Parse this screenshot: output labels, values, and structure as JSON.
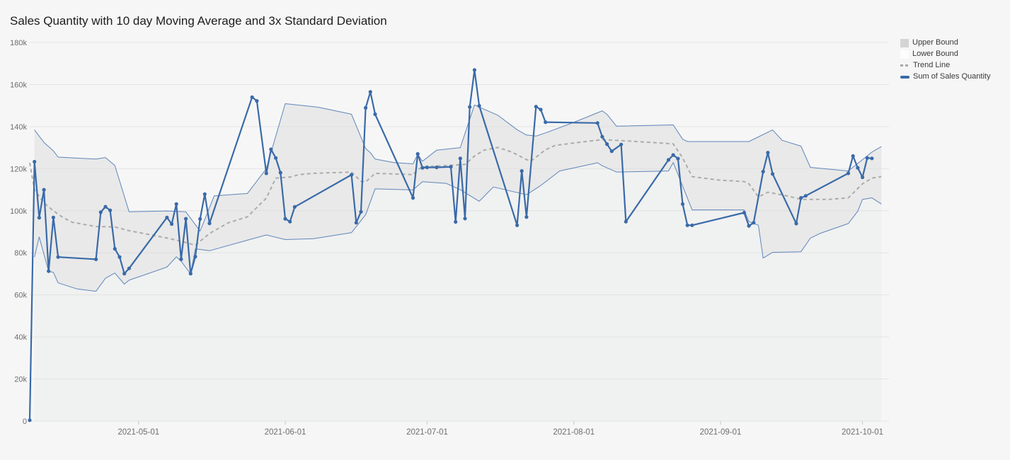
{
  "title": "Sales Quantity with 10 day Moving Average and 3x Standard Deviation",
  "colors": {
    "page_bg": "#f6f6f6",
    "band_fill": "#e9e9e9",
    "below_band_fill": "#f0f1f1",
    "grid": "#dedede",
    "tick_mark": "#c8c8c8",
    "axis_label": "#6e6e6e",
    "bound_line": "#5f86ba",
    "trend_line": "#acacac",
    "sales_line": "#3a6aa8",
    "title_text": "#1d1d1d",
    "legend_text": "#3a3a3a",
    "legend_upper_swatch": "#d4d4d4",
    "legend_lower_swatch": "#fdfdfd"
  },
  "legend": {
    "items": [
      {
        "label": "Upper Bound",
        "swatch": "filled-square-gray"
      },
      {
        "label": "Lower Bound",
        "swatch": "filled-square-white"
      },
      {
        "label": "Trend Line",
        "swatch": "dashed-line"
      },
      {
        "label": "Sum of Sales Quantity",
        "swatch": "solid-line"
      }
    ]
  },
  "chart_data": {
    "type": "line",
    "title": "Sales Quantity with 10 day Moving Average and 3x Standard Deviation",
    "grid": true,
    "legend_position": "top-right",
    "x_range": [
      "2021-04-08",
      "2021-10-06"
    ],
    "x_ticks": [
      "2021-05-01",
      "2021-06-01",
      "2021-07-01",
      "2021-08-01",
      "2021-09-01",
      "2021-10-01"
    ],
    "y_axis": {
      "min": 0,
      "max": 180000,
      "step": 20000,
      "tick_labels": [
        "0",
        "20k",
        "40k",
        "60k",
        "80k",
        "100k",
        "120k",
        "140k",
        "160k",
        "180k"
      ]
    },
    "series": [
      {
        "name": "Upper Bound",
        "role": "band-upper",
        "points": [
          [
            "2021-04-09",
            138400
          ],
          [
            "2021-04-11",
            132500
          ],
          [
            "2021-04-13",
            128500
          ],
          [
            "2021-04-14",
            125500
          ],
          [
            "2021-04-22",
            124600
          ],
          [
            "2021-04-24",
            125300
          ],
          [
            "2021-04-26",
            121500
          ],
          [
            "2021-04-29",
            99500
          ],
          [
            "2021-05-07",
            99900
          ],
          [
            "2021-05-11",
            99500
          ],
          [
            "2021-05-14",
            90300
          ],
          [
            "2021-05-17",
            107100
          ],
          [
            "2021-05-24",
            108200
          ],
          [
            "2021-05-28",
            120000
          ],
          [
            "2021-06-01",
            150900
          ],
          [
            "2021-06-08",
            149200
          ],
          [
            "2021-06-15",
            145900
          ],
          [
            "2021-06-18",
            129600
          ],
          [
            "2021-06-19",
            127600
          ],
          [
            "2021-06-20",
            124600
          ],
          [
            "2021-06-24",
            122900
          ],
          [
            "2021-06-28",
            122300
          ],
          [
            "2021-06-29",
            126800
          ],
          [
            "2021-06-30",
            123500
          ],
          [
            "2021-07-03",
            128800
          ],
          [
            "2021-07-08",
            130000
          ],
          [
            "2021-07-11",
            150300
          ],
          [
            "2021-07-16",
            145300
          ],
          [
            "2021-07-20",
            138500
          ],
          [
            "2021-07-22",
            136000
          ],
          [
            "2021-07-24",
            135500
          ],
          [
            "2021-07-26",
            137000
          ],
          [
            "2021-08-01",
            142000
          ],
          [
            "2021-08-07",
            147500
          ],
          [
            "2021-08-08",
            145800
          ],
          [
            "2021-08-10",
            140200
          ],
          [
            "2021-08-22",
            140800
          ],
          [
            "2021-08-24",
            134000
          ],
          [
            "2021-08-25",
            132900
          ],
          [
            "2021-09-07",
            132900
          ],
          [
            "2021-09-12",
            138400
          ],
          [
            "2021-09-14",
            133500
          ],
          [
            "2021-09-18",
            130700
          ],
          [
            "2021-09-20",
            120600
          ],
          [
            "2021-09-28",
            118900
          ],
          [
            "2021-10-03",
            127900
          ],
          [
            "2021-10-05",
            130500
          ]
        ]
      },
      {
        "name": "Lower Bound",
        "role": "band-lower",
        "points": [
          [
            "2021-04-09",
            78000
          ],
          [
            "2021-04-10",
            87500
          ],
          [
            "2021-04-12",
            71200
          ],
          [
            "2021-04-13",
            70700
          ],
          [
            "2021-04-14",
            65700
          ],
          [
            "2021-04-18",
            62800
          ],
          [
            "2021-04-22",
            61700
          ],
          [
            "2021-04-24",
            67900
          ],
          [
            "2021-04-26",
            70400
          ],
          [
            "2021-04-28",
            65100
          ],
          [
            "2021-04-29",
            67000
          ],
          [
            "2021-05-07",
            73200
          ],
          [
            "2021-05-09",
            78100
          ],
          [
            "2021-05-10",
            76000
          ],
          [
            "2021-05-12",
            69900
          ],
          [
            "2021-05-13",
            81900
          ],
          [
            "2021-05-16",
            81000
          ],
          [
            "2021-05-24",
            86000
          ],
          [
            "2021-05-28",
            88500
          ],
          [
            "2021-06-01",
            86300
          ],
          [
            "2021-06-07",
            86700
          ],
          [
            "2021-06-15",
            89600
          ],
          [
            "2021-06-18",
            98100
          ],
          [
            "2021-06-20",
            110400
          ],
          [
            "2021-06-28",
            109900
          ],
          [
            "2021-06-30",
            113800
          ],
          [
            "2021-07-05",
            113000
          ],
          [
            "2021-07-08",
            110000
          ],
          [
            "2021-07-12",
            104500
          ],
          [
            "2021-07-15",
            111300
          ],
          [
            "2021-07-22",
            107600
          ],
          [
            "2021-07-25",
            112000
          ],
          [
            "2021-07-29",
            118900
          ],
          [
            "2021-08-06",
            122800
          ],
          [
            "2021-08-07",
            121400
          ],
          [
            "2021-08-10",
            118400
          ],
          [
            "2021-08-21",
            118900
          ],
          [
            "2021-08-22",
            122900
          ],
          [
            "2021-08-26",
            100400
          ],
          [
            "2021-09-06",
            100400
          ],
          [
            "2021-09-07",
            94800
          ],
          [
            "2021-09-09",
            93100
          ],
          [
            "2021-09-10",
            77500
          ],
          [
            "2021-09-12",
            80200
          ],
          [
            "2021-09-18",
            80500
          ],
          [
            "2021-09-20",
            87000
          ],
          [
            "2021-09-22",
            89200
          ],
          [
            "2021-09-28",
            93900
          ],
          [
            "2021-09-30",
            99800
          ],
          [
            "2021-10-01",
            105400
          ],
          [
            "2021-10-03",
            106100
          ],
          [
            "2021-10-05",
            103200
          ]
        ]
      },
      {
        "name": "Trend Line",
        "role": "trend",
        "points": [
          [
            "2021-04-08",
            122800
          ],
          [
            "2021-04-09",
            110000
          ],
          [
            "2021-04-11",
            103700
          ],
          [
            "2021-04-13",
            100000
          ],
          [
            "2021-04-15",
            96800
          ],
          [
            "2021-04-17",
            94500
          ],
          [
            "2021-04-22",
            92500
          ],
          [
            "2021-04-26",
            92300
          ],
          [
            "2021-04-29",
            90500
          ],
          [
            "2021-05-03",
            88800
          ],
          [
            "2021-05-07",
            87000
          ],
          [
            "2021-05-10",
            85500
          ],
          [
            "2021-05-13",
            83600
          ],
          [
            "2021-05-16",
            89200
          ],
          [
            "2021-05-20",
            94300
          ],
          [
            "2021-05-24",
            97100
          ],
          [
            "2021-05-28",
            106000
          ],
          [
            "2021-05-30",
            115500
          ],
          [
            "2021-06-02",
            116000
          ],
          [
            "2021-06-04",
            117200
          ],
          [
            "2021-06-07",
            117800
          ],
          [
            "2021-06-15",
            118400
          ],
          [
            "2021-06-17",
            114000
          ],
          [
            "2021-06-18",
            113700
          ],
          [
            "2021-06-20",
            117800
          ],
          [
            "2021-06-28",
            117200
          ],
          [
            "2021-06-29",
            119500
          ],
          [
            "2021-06-30",
            120900
          ],
          [
            "2021-07-05",
            121500
          ],
          [
            "2021-07-09",
            122000
          ],
          [
            "2021-07-11",
            126000
          ],
          [
            "2021-07-13",
            128800
          ],
          [
            "2021-07-16",
            130100
          ],
          [
            "2021-07-19",
            127800
          ],
          [
            "2021-07-22",
            124300
          ],
          [
            "2021-07-23",
            123700
          ],
          [
            "2021-07-26",
            129000
          ],
          [
            "2021-07-28",
            131000
          ],
          [
            "2021-08-02",
            132500
          ],
          [
            "2021-08-07",
            133800
          ],
          [
            "2021-08-12",
            133200
          ],
          [
            "2021-08-18",
            132400
          ],
          [
            "2021-08-22",
            131800
          ],
          [
            "2021-08-24",
            125100
          ],
          [
            "2021-08-26",
            116200
          ],
          [
            "2021-09-01",
            114500
          ],
          [
            "2021-09-06",
            113900
          ],
          [
            "2021-09-07",
            112800
          ],
          [
            "2021-09-09",
            106600
          ],
          [
            "2021-09-11",
            108800
          ],
          [
            "2021-09-15",
            107100
          ],
          [
            "2021-09-18",
            105400
          ],
          [
            "2021-09-24",
            105400
          ],
          [
            "2021-09-28",
            106100
          ],
          [
            "2021-10-01",
            112800
          ],
          [
            "2021-10-03",
            115500
          ],
          [
            "2021-10-05",
            116200
          ]
        ]
      },
      {
        "name": "Sum of Sales Quantity",
        "role": "main",
        "points": [
          [
            "2021-04-08",
            400
          ],
          [
            "2021-04-09",
            123300
          ],
          [
            "2021-04-10",
            96700
          ],
          [
            "2021-04-11",
            110000
          ],
          [
            "2021-04-12",
            71300
          ],
          [
            "2021-04-13",
            96800
          ],
          [
            "2021-04-14",
            78000
          ],
          [
            "2021-04-22",
            76900
          ],
          [
            "2021-04-23",
            99300
          ],
          [
            "2021-04-24",
            101900
          ],
          [
            "2021-04-25",
            100200
          ],
          [
            "2021-04-26",
            81900
          ],
          [
            "2021-04-27",
            78000
          ],
          [
            "2021-04-28",
            70100
          ],
          [
            "2021-04-29",
            72600
          ],
          [
            "2021-05-07",
            96800
          ],
          [
            "2021-05-08",
            93700
          ],
          [
            "2021-05-09",
            103200
          ],
          [
            "2021-05-10",
            76900
          ],
          [
            "2021-05-11",
            96200
          ],
          [
            "2021-05-12",
            70100
          ],
          [
            "2021-05-13",
            78200
          ],
          [
            "2021-05-14",
            96100
          ],
          [
            "2021-05-15",
            107900
          ],
          [
            "2021-05-16",
            94000
          ],
          [
            "2021-05-25",
            154000
          ],
          [
            "2021-05-26",
            152200
          ],
          [
            "2021-05-28",
            117800
          ],
          [
            "2021-05-29",
            129200
          ],
          [
            "2021-05-30",
            125100
          ],
          [
            "2021-05-31",
            118100
          ],
          [
            "2021-06-01",
            96200
          ],
          [
            "2021-06-02",
            94800
          ],
          [
            "2021-06-03",
            101800
          ],
          [
            "2021-06-15",
            117100
          ],
          [
            "2021-06-16",
            94300
          ],
          [
            "2021-06-17",
            99500
          ],
          [
            "2021-06-18",
            148900
          ],
          [
            "2021-06-19",
            156500
          ],
          [
            "2021-06-20",
            145900
          ],
          [
            "2021-06-28",
            106100
          ],
          [
            "2021-06-29",
            127000
          ],
          [
            "2021-06-30",
            120400
          ],
          [
            "2021-07-01",
            120600
          ],
          [
            "2021-07-03",
            120600
          ],
          [
            "2021-07-06",
            120900
          ],
          [
            "2021-07-07",
            94700
          ],
          [
            "2021-07-08",
            124900
          ],
          [
            "2021-07-09",
            96300
          ],
          [
            "2021-07-10",
            149300
          ],
          [
            "2021-07-11",
            166900
          ],
          [
            "2021-07-12",
            149900
          ],
          [
            "2021-07-20",
            93100
          ],
          [
            "2021-07-21",
            118900
          ],
          [
            "2021-07-22",
            97000
          ],
          [
            "2021-07-24",
            149500
          ],
          [
            "2021-07-25",
            148100
          ],
          [
            "2021-07-26",
            142100
          ],
          [
            "2021-08-06",
            141700
          ],
          [
            "2021-08-07",
            135200
          ],
          [
            "2021-08-08",
            131700
          ],
          [
            "2021-08-09",
            128300
          ],
          [
            "2021-08-11",
            131500
          ],
          [
            "2021-08-12",
            94800
          ],
          [
            "2021-08-21",
            124200
          ],
          [
            "2021-08-22",
            126500
          ],
          [
            "2021-08-23",
            124800
          ],
          [
            "2021-08-24",
            103200
          ],
          [
            "2021-08-25",
            93100
          ],
          [
            "2021-08-26",
            93100
          ],
          [
            "2021-09-06",
            99100
          ],
          [
            "2021-09-07",
            92800
          ],
          [
            "2021-09-08",
            94300
          ],
          [
            "2021-09-10",
            118600
          ],
          [
            "2021-09-11",
            127600
          ],
          [
            "2021-09-12",
            117500
          ],
          [
            "2021-09-17",
            93900
          ],
          [
            "2021-09-18",
            106100
          ],
          [
            "2021-09-19",
            107100
          ],
          [
            "2021-09-28",
            117800
          ],
          [
            "2021-09-29",
            126000
          ],
          [
            "2021-09-30",
            120400
          ],
          [
            "2021-10-01",
            115900
          ],
          [
            "2021-10-02",
            125100
          ],
          [
            "2021-10-03",
            124900
          ]
        ]
      }
    ]
  }
}
